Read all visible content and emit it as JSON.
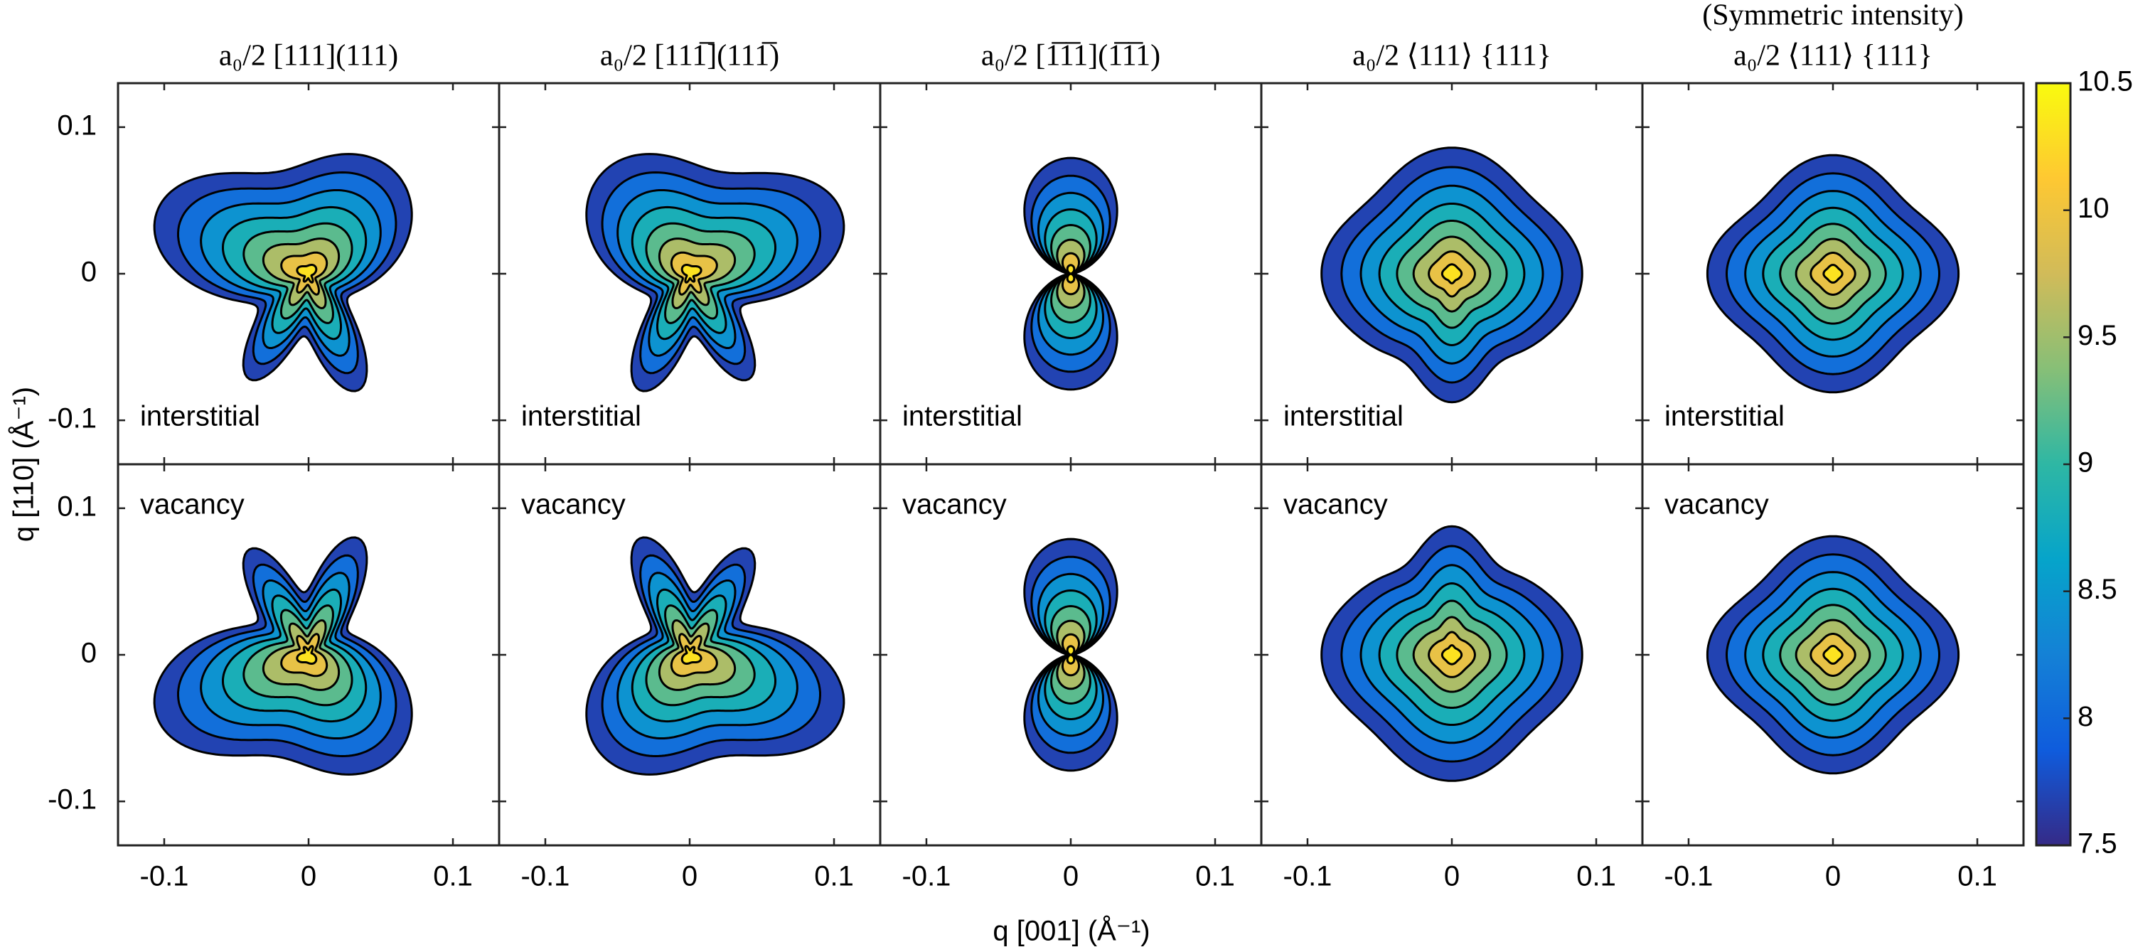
{
  "chart_data": {
    "type": "contour",
    "titles": [
      "a₀/2 [111](111)",
      "a₀/2 [111̅](111̅)",
      "a₀/2 [1̅1̅1](1̅1̅1)",
      "a₀/2 ⟨111⟩ {111}",
      "a₀/2 ⟨111⟩ {111}"
    ],
    "title_note": "(Symmetric intensity)",
    "row_labels": [
      "interstitial",
      "vacancy"
    ],
    "xlabel": "q [001] (Å⁻¹)",
    "ylabel": "q [110] (Å⁻¹)",
    "xlim": [
      -0.132,
      0.132
    ],
    "xticks": [
      -0.1,
      0,
      0.1
    ],
    "ylim": [
      -0.13,
      0.13
    ],
    "yticks": [
      -0.1,
      0,
      0.1
    ],
    "levels": [
      7.5,
      7.875,
      8.25,
      8.625,
      9,
      9.375,
      9.75,
      10.125
    ],
    "colorbar": {
      "lim": [
        7.5,
        10.5
      ],
      "ticks": [
        7.5,
        8,
        8.5,
        9,
        9.5,
        10,
        10.5
      ],
      "colors": [
        "#352a87",
        "#0f5cdd",
        "#1481d6",
        "#06a4ca",
        "#2eb7a4",
        "#87bf77",
        "#d1bb59",
        "#fec832",
        "#f9fb0e"
      ]
    }
  }
}
